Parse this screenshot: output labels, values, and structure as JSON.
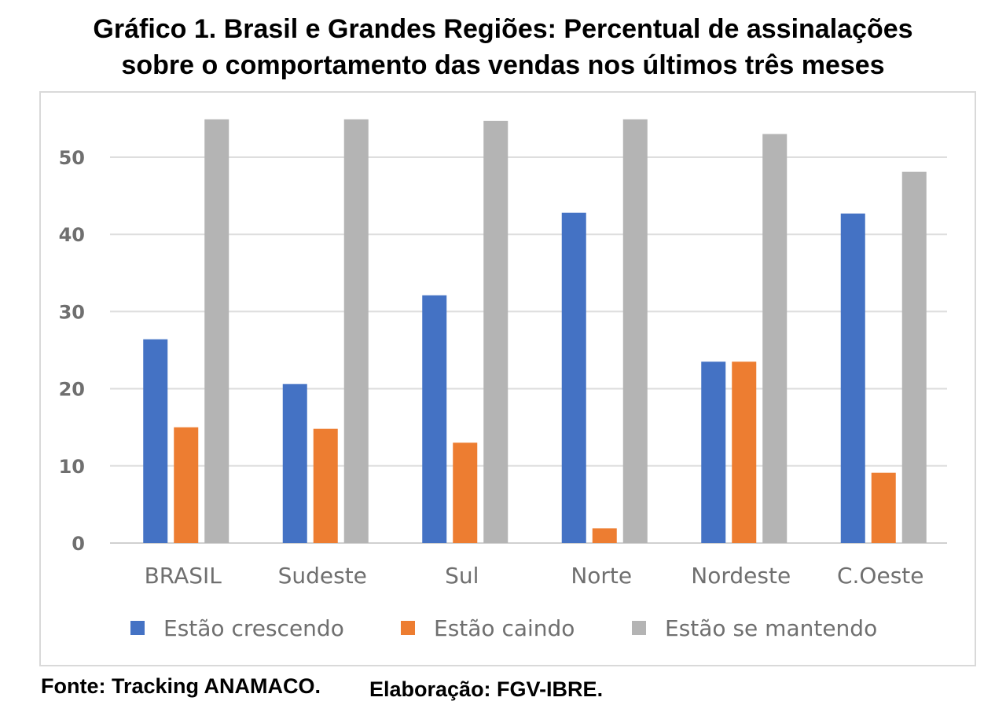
{
  "title_lines": [
    "Gráfico 1. Brasil e Grandes Regiões: Percentual de assinalações",
    "sobre o comportamento das vendas nos últimos três meses"
  ],
  "footer": {
    "source": "Fonte: Tracking ANAMACO.",
    "elaboration": "Elaboração: FGV-IBRE."
  },
  "chart_data": {
    "type": "bar",
    "title": "Gráfico 1. Brasil e Grandes Regiões: Percentual de assinalações sobre o comportamento das vendas nos últimos três meses",
    "xlabel": "",
    "ylabel": "",
    "ylim": [
      0,
      55
    ],
    "yticks": [
      0,
      10,
      20,
      30,
      40,
      50
    ],
    "grid": true,
    "legend_position": "bottom",
    "categories": [
      "BRASIL",
      "Sudeste",
      "Sul",
      "Norte",
      "Nordeste",
      "C.Oeste"
    ],
    "series": [
      {
        "name": "Estão crescendo",
        "color": "#4472c4",
        "values": [
          26.4,
          20.6,
          32.1,
          42.8,
          23.5,
          42.7
        ]
      },
      {
        "name": "Estão caindo",
        "color": "#ed7d31",
        "values": [
          15.0,
          14.8,
          13.0,
          1.9,
          23.5,
          9.1
        ]
      },
      {
        "name": "Estão se mantendo",
        "color": "#b4b4b4",
        "values": [
          54.9,
          54.9,
          54.7,
          54.9,
          53.0,
          48.1
        ]
      }
    ]
  }
}
